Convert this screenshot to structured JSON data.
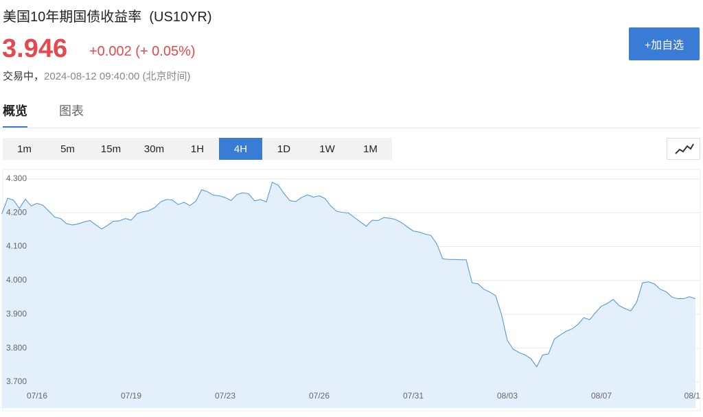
{
  "header": {
    "title": "美国10年期国债收益率  (US10YR)",
    "price": "3.946",
    "change": "+0.002 (+ 0.05%)",
    "status": "交易中，",
    "time": "2024-08-12 09:40:00 (北京时间)",
    "button": "+加自选"
  },
  "tabs": [
    {
      "label": "概览",
      "active": true
    },
    {
      "label": "图表",
      "active": false
    }
  ],
  "periods": [
    {
      "label": "1m",
      "active": false
    },
    {
      "label": "5m",
      "active": false
    },
    {
      "label": "15m",
      "active": false
    },
    {
      "label": "30m",
      "active": false
    },
    {
      "label": "1H",
      "active": false
    },
    {
      "label": "4H",
      "active": true
    },
    {
      "label": "1D",
      "active": false
    },
    {
      "label": "1W",
      "active": false
    },
    {
      "label": "1M",
      "active": false
    }
  ],
  "chart_data": {
    "type": "area",
    "color": "#4a90d9",
    "fill": "#e3effb",
    "grid": true,
    "ylim": [
      3.623,
      4.328
    ],
    "yticks": [
      {
        "value": 3.7,
        "label": "3.700"
      },
      {
        "value": 3.8,
        "label": "3.800"
      },
      {
        "value": 3.9,
        "label": "3.900"
      },
      {
        "value": 4.0,
        "label": "4.000"
      },
      {
        "value": 4.1,
        "label": "4.100"
      },
      {
        "value": 4.2,
        "label": "4.200"
      },
      {
        "value": 4.3,
        "label": "4.300"
      }
    ],
    "categories": [
      null,
      null,
      null,
      null,
      null,
      null,
      "07/16",
      null,
      null,
      null,
      null,
      null,
      null,
      null,
      null,
      null,
      null,
      null,
      null,
      null,
      null,
      null,
      "07/19",
      null,
      null,
      null,
      null,
      null,
      null,
      null,
      null,
      null,
      null,
      null,
      null,
      null,
      null,
      null,
      "07/23",
      null,
      null,
      null,
      null,
      null,
      null,
      null,
      null,
      null,
      null,
      null,
      null,
      null,
      null,
      null,
      "07/26",
      null,
      null,
      null,
      null,
      null,
      null,
      null,
      null,
      null,
      null,
      null,
      null,
      null,
      null,
      null,
      "07/31",
      null,
      null,
      null,
      null,
      null,
      null,
      null,
      null,
      null,
      null,
      null,
      null,
      null,
      null,
      null,
      "08/03",
      null,
      null,
      null,
      null,
      null,
      null,
      null,
      null,
      null,
      null,
      null,
      null,
      null,
      null,
      null,
      "08/07",
      null,
      null,
      null,
      null,
      null,
      null,
      null,
      null,
      null,
      null,
      null,
      null,
      null,
      null,
      null,
      "08/1"
    ],
    "values": [
      4.197,
      4.243,
      4.237,
      4.213,
      4.24,
      4.22,
      4.228,
      4.222,
      4.205,
      4.187,
      4.183,
      4.168,
      4.164,
      4.167,
      4.173,
      4.177,
      4.164,
      4.152,
      4.163,
      4.175,
      4.176,
      4.183,
      4.178,
      4.197,
      4.203,
      4.206,
      4.215,
      4.232,
      4.239,
      4.238,
      4.224,
      4.231,
      4.221,
      4.234,
      4.268,
      4.262,
      4.252,
      4.25,
      4.245,
      4.236,
      4.254,
      4.259,
      4.256,
      4.235,
      4.239,
      4.232,
      4.29,
      4.282,
      4.257,
      4.236,
      4.233,
      4.245,
      4.253,
      4.246,
      4.25,
      4.242,
      4.219,
      4.204,
      4.201,
      4.199,
      4.186,
      4.173,
      4.16,
      4.178,
      4.177,
      4.186,
      4.184,
      4.18,
      4.171,
      4.158,
      4.146,
      4.143,
      4.137,
      4.133,
      4.108,
      4.064,
      4.062,
      4.062,
      4.061,
      4.061,
      3.993,
      3.99,
      3.974,
      3.966,
      3.955,
      3.9,
      3.823,
      3.797,
      3.787,
      3.78,
      3.769,
      3.745,
      3.78,
      3.783,
      3.827,
      3.839,
      3.85,
      3.857,
      3.87,
      3.89,
      3.884,
      3.905,
      3.924,
      3.932,
      3.944,
      3.926,
      3.917,
      3.91,
      3.936,
      3.993,
      3.996,
      3.99,
      3.974,
      3.967,
      3.951,
      3.946,
      3.946,
      3.952,
      3.946
    ]
  }
}
